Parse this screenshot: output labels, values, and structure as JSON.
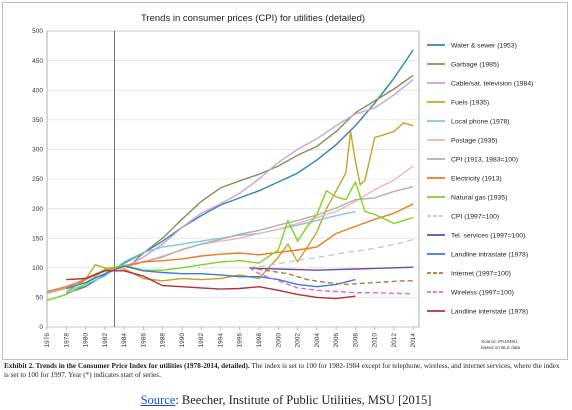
{
  "chart_data": {
    "type": "line",
    "title": "Trends in consumer prices (CPI) for utilities (detailed)",
    "xlabel": "",
    "ylabel": "",
    "x_ticks": [
      1976,
      1978,
      1980,
      1982,
      1984,
      1986,
      1988,
      1990,
      1992,
      1994,
      1996,
      1998,
      2000,
      2002,
      2004,
      2006,
      2008,
      2010,
      2012,
      2014
    ],
    "y_ticks": [
      0,
      50,
      100,
      150,
      200,
      250,
      300,
      350,
      400,
      450,
      500
    ],
    "xlim": [
      1976,
      2014.6
    ],
    "ylim": [
      0,
      500
    ],
    "grid": true,
    "legend_position": "right",
    "reference_line_x": 1983,
    "note": "Source: IPU-MSU, based on BLS data",
    "series": [
      {
        "name": "Water & sewer (1953)",
        "color": "#2e86ab",
        "dash": "",
        "x": [
          1978,
          1980,
          1982,
          1984,
          1986,
          1988,
          1990,
          1992,
          1994,
          1996,
          1998,
          2000,
          2002,
          2004,
          2006,
          2008,
          2010,
          2012,
          2014
        ],
        "y": [
          57,
          68,
          88,
          108,
          125,
          145,
          168,
          188,
          206,
          218,
          230,
          245,
          260,
          282,
          308,
          340,
          378,
          420,
          468
        ]
      },
      {
        "name": "Garbage (1985)",
        "color": "#8d8b5a",
        "dash": "",
        "x": [
          1985,
          1986,
          1988,
          1990,
          1992,
          1994,
          1996,
          1998,
          2000,
          2002,
          2004,
          2006,
          2008,
          2010,
          2012,
          2014
        ],
        "y": [
          110,
          125,
          150,
          182,
          212,
          235,
          247,
          258,
          272,
          290,
          305,
          330,
          362,
          382,
          402,
          425
        ]
      },
      {
        "name": "Cable/sat. television (1984)",
        "color": "#c9a0dc",
        "dash": "",
        "x": [
          1984,
          1986,
          1988,
          1990,
          1992,
          1994,
          1996,
          1998,
          2000,
          2002,
          2004,
          2006,
          2008,
          2010,
          2012,
          2014
        ],
        "y": [
          100,
          118,
          140,
          168,
          192,
          208,
          226,
          250,
          278,
          300,
          318,
          340,
          360,
          370,
          392,
          418
        ]
      },
      {
        "name": "Fuels (1935)",
        "color": "#c9a227",
        "dash": "",
        "x": [
          1978,
          1980,
          1981,
          1982,
          1984,
          1986,
          1988,
          1990,
          1992,
          1994,
          1996,
          1998,
          2000,
          2001,
          2002,
          2003,
          2004,
          2005,
          2006,
          2007,
          2007.5,
          2008,
          2008.5,
          2009,
          2010,
          2012,
          2013,
          2014
        ],
        "y": [
          60,
          80,
          105,
          100,
          98,
          82,
          78,
          82,
          80,
          82,
          88,
          82,
          118,
          140,
          110,
          135,
          160,
          200,
          230,
          260,
          330,
          280,
          240,
          248,
          320,
          330,
          345,
          340
        ]
      },
      {
        "name": "Local phone (1978)",
        "color": "#7ec8e3",
        "dash": "",
        "x": [
          1978,
          1980,
          1982,
          1984,
          1986,
          1988,
          1990,
          1992,
          1994,
          1996,
          1998,
          2000,
          2002,
          2004,
          2006,
          2008
        ],
        "y": [
          60,
          72,
          86,
          110,
          126,
          135,
          140,
          145,
          150,
          155,
          158,
          165,
          172,
          180,
          188,
          195
        ]
      },
      {
        "name": "Postage (1935)",
        "color": "#f2b5b5",
        "dash": "",
        "x": [
          1976,
          1978,
          1980,
          1982,
          1984,
          1986,
          1988,
          1990,
          1992,
          1994,
          1996,
          1998,
          2000,
          2002,
          2004,
          2006,
          2008,
          2010,
          2012,
          2014
        ],
        "y": [
          58,
          66,
          75,
          95,
          100,
          110,
          120,
          130,
          140,
          145,
          150,
          158,
          165,
          175,
          185,
          195,
          212,
          232,
          248,
          272
        ]
      },
      {
        "name": "CPI (1913, 1983=100)",
        "color": "#b0b0b0",
        "dash": "",
        "x": [
          1976,
          1978,
          1980,
          1982,
          1984,
          1986,
          1988,
          1990,
          1992,
          1994,
          1996,
          1998,
          2000,
          2002,
          2004,
          2006,
          2008,
          2010,
          2012,
          2014
        ],
        "y": [
          57,
          65,
          82,
          97,
          104,
          110,
          118,
          131,
          140,
          148,
          157,
          163,
          172,
          180,
          189,
          201,
          215,
          218,
          229,
          237
        ]
      },
      {
        "name": "Electricity (1913)",
        "color": "#f07a1a",
        "dash": "",
        "x": [
          1976,
          1978,
          1980,
          1982,
          1984,
          1986,
          1988,
          1990,
          1992,
          1994,
          1996,
          1998,
          2000,
          2002,
          2004,
          2006,
          2008,
          2010,
          2012,
          2014
        ],
        "y": [
          60,
          68,
          80,
          96,
          103,
          110,
          112,
          115,
          120,
          123,
          125,
          122,
          126,
          130,
          135,
          158,
          170,
          182,
          192,
          208
        ]
      },
      {
        "name": "Natural gas (1935)",
        "color": "#7fd321",
        "dash": "",
        "x": [
          1976,
          1978,
          1980,
          1982,
          1984,
          1986,
          1988,
          1990,
          1992,
          1994,
          1996,
          1998,
          2000,
          2001,
          2002,
          2003,
          2004,
          2005,
          2006,
          2007,
          2008,
          2009,
          2010,
          2012,
          2013,
          2014
        ],
        "y": [
          45,
          55,
          72,
          98,
          104,
          96,
          96,
          100,
          105,
          110,
          112,
          108,
          130,
          180,
          145,
          170,
          190,
          230,
          220,
          215,
          245,
          195,
          190,
          175,
          180,
          185
        ]
      },
      {
        "name": "CPI (1997=100)",
        "color": "#c8c8c8",
        "dash": "6,4",
        "x": [
          1997,
          1999,
          2001,
          2003,
          2005,
          2007,
          2009,
          2011,
          2013,
          2014
        ],
        "y": [
          100,
          104,
          110,
          115,
          120,
          126,
          130,
          136,
          143,
          148
        ]
      },
      {
        "name": "Tel. services (1997=100)",
        "color": "#6a4aa8",
        "dash": "",
        "x": [
          1997,
          1998,
          2000,
          2002,
          2004,
          2006,
          2008,
          2010,
          2012,
          2014
        ],
        "y": [
          100,
          99,
          98,
          97,
          96,
          97,
          98,
          99,
          100,
          101
        ]
      },
      {
        "name": "Landline intrastate (1978)",
        "color": "#3a7bd5",
        "dash": "",
        "x": [
          1978,
          1980,
          1982,
          1984,
          1986,
          1988,
          1990,
          1992,
          1994,
          1996,
          1998,
          2000,
          2002,
          2004,
          2006,
          2008
        ],
        "y": [
          65,
          75,
          90,
          103,
          95,
          92,
          90,
          90,
          88,
          85,
          85,
          80,
          72,
          68,
          72,
          80
        ]
      },
      {
        "name": "Internet (1997=100)",
        "color": "#b8743a",
        "dash": "5,3",
        "x": [
          1997,
          1999,
          2001,
          2003,
          2005,
          2007,
          2009,
          2011,
          2013,
          2014
        ],
        "y": [
          100,
          95,
          90,
          80,
          75,
          72,
          74,
          76,
          78,
          78
        ]
      },
      {
        "name": "Wireless (1997=100)",
        "color": "#e066e0",
        "dash": "5,3",
        "x": [
          1997,
          1998,
          2000,
          2002,
          2004,
          2006,
          2008,
          2010,
          2012,
          2014
        ],
        "y": [
          100,
          90,
          78,
          66,
          62,
          60,
          58,
          58,
          57,
          56
        ]
      },
      {
        "name": "Landline interstate (1978)",
        "color": "#b0303a",
        "dash": "",
        "x": [
          1978,
          1980,
          1982,
          1984,
          1986,
          1988,
          1990,
          1992,
          1994,
          1996,
          1998,
          2000,
          2002,
          2004,
          2006,
          2008
        ],
        "y": [
          80,
          82,
          95,
          95,
          86,
          70,
          68,
          66,
          64,
          65,
          68,
          62,
          55,
          50,
          48,
          52
        ]
      }
    ]
  },
  "caption": {
    "label": "Exhibit 2.  Trends in the Consumer Price Index for utilities (1978-2014, detailed).",
    "text": " The index is set to 100 for 1982-1984 except for telephone, wireless, and internet services, where the index is set to 100 for 1997.  Year (*) indicates start of series."
  },
  "source": {
    "link_text": "Source",
    "text": ": Beecher, Institute of Public Utilities, MSU [2015]"
  }
}
